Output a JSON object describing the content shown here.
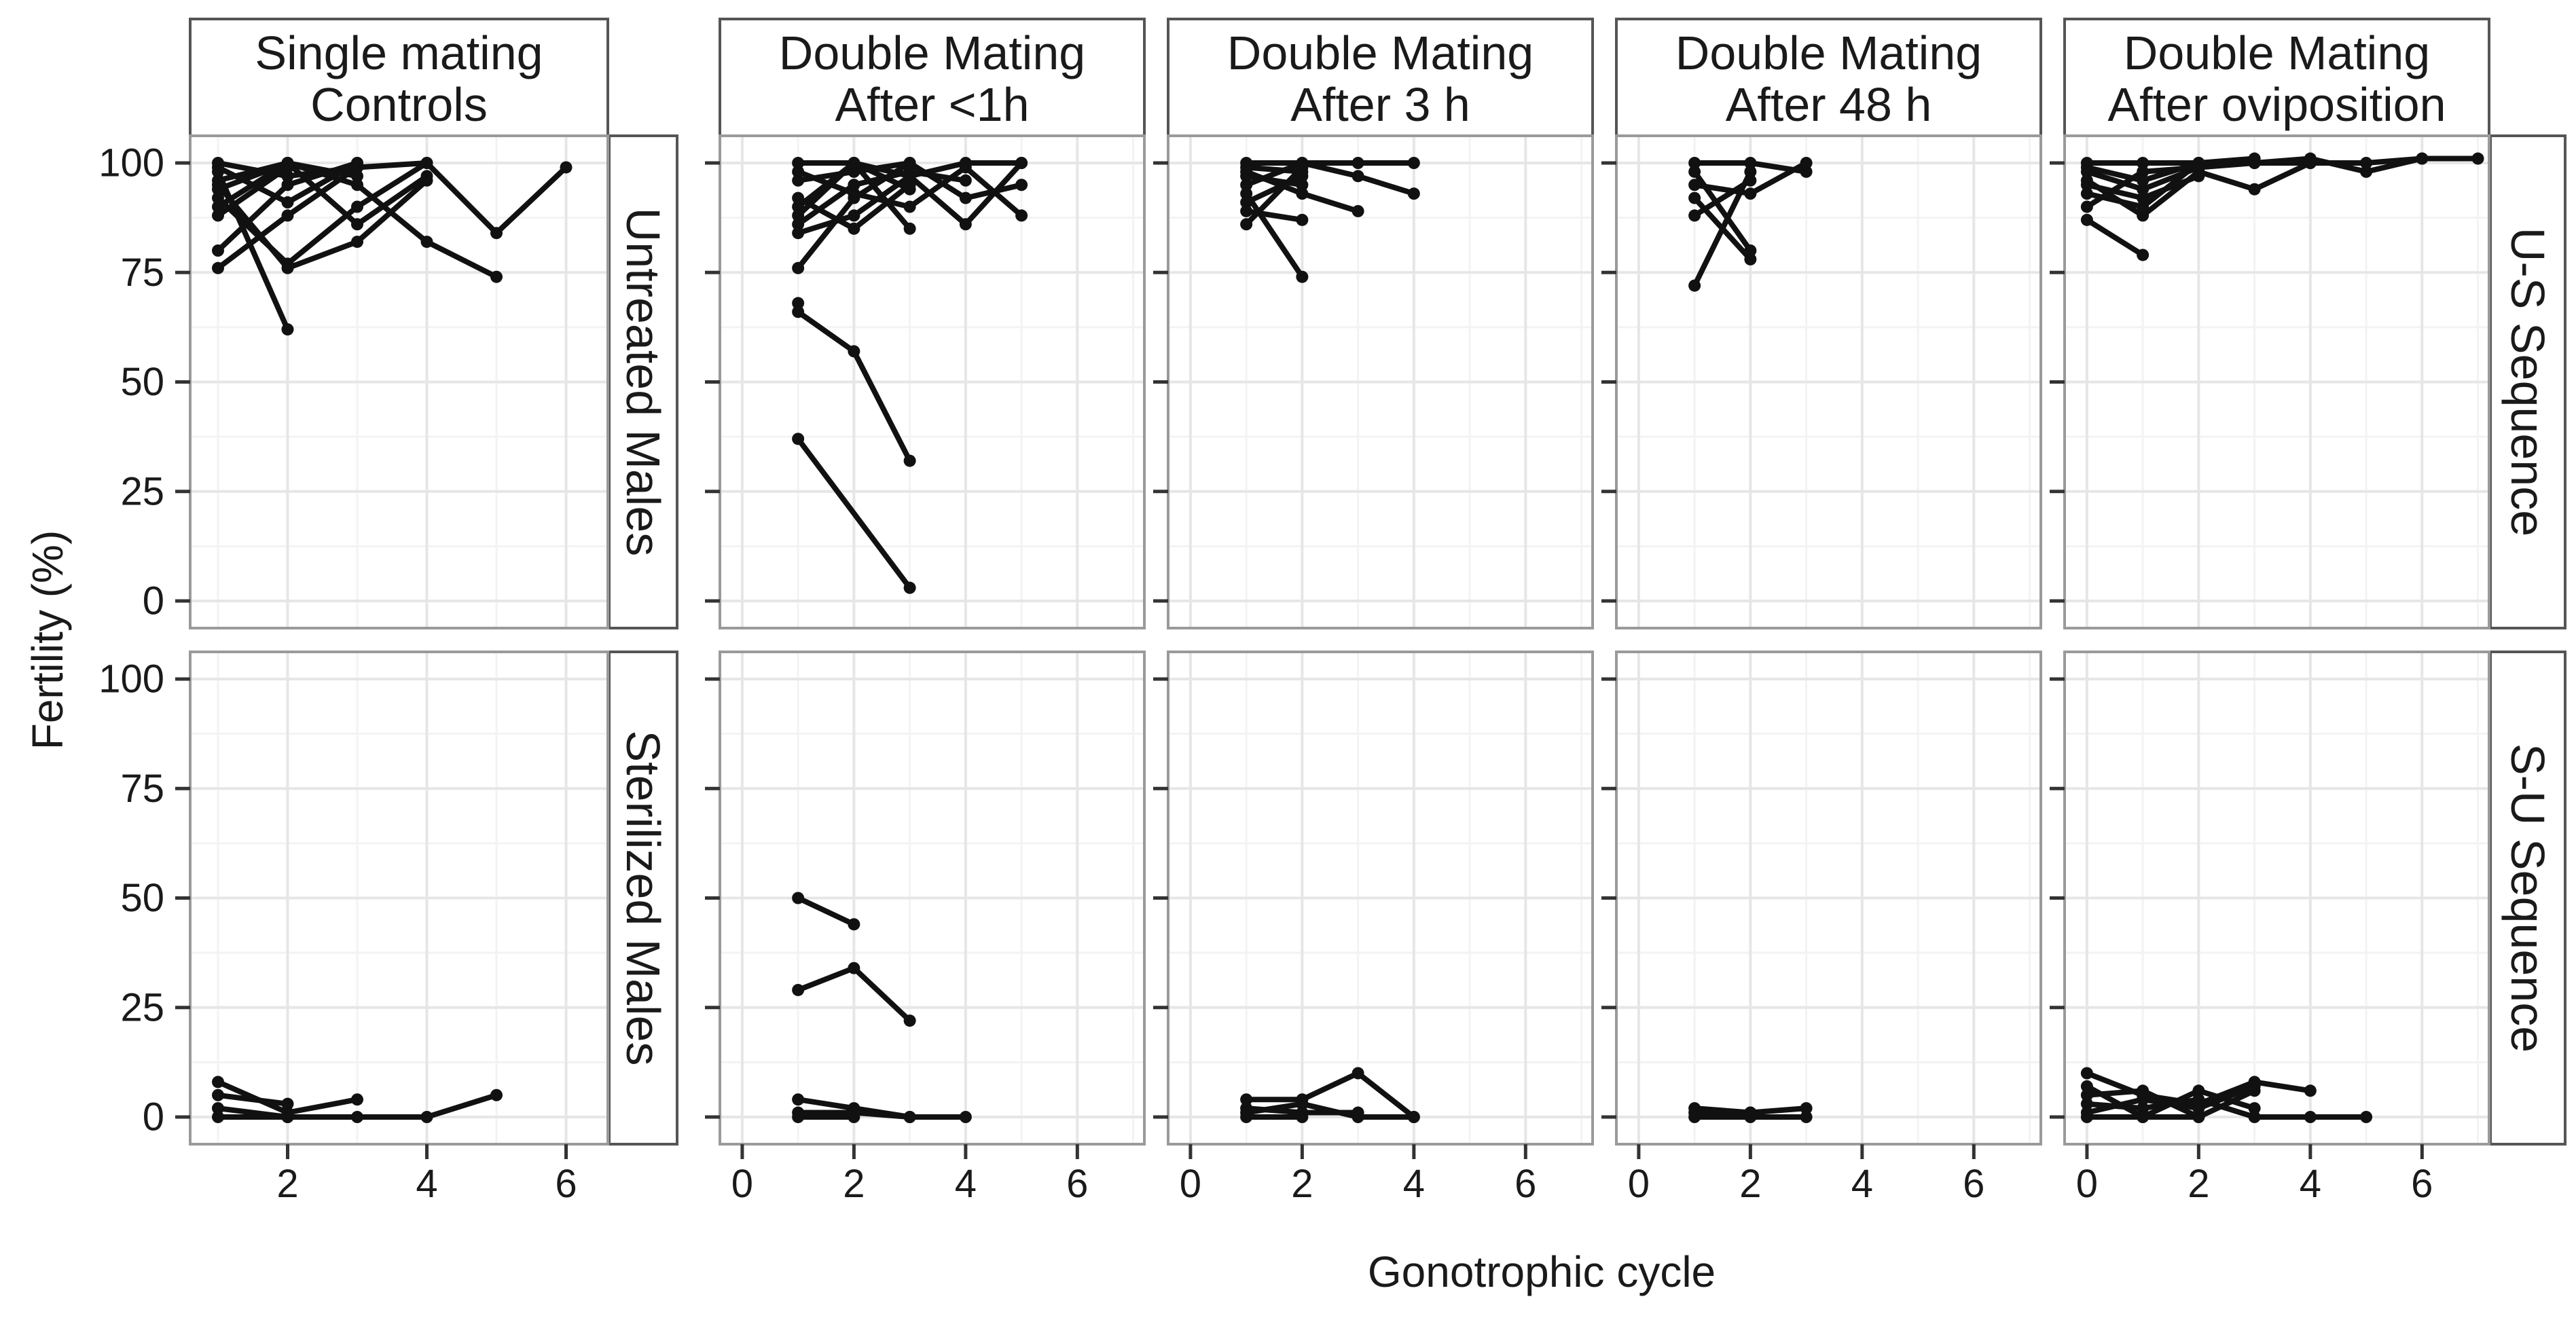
{
  "chart_data": {
    "type": "line",
    "title": "",
    "xlabel": "Gonotrophic cycle",
    "ylabel": "Fertility (%)",
    "ylim": [
      0,
      100
    ],
    "yticks": [
      0,
      25,
      50,
      75,
      100
    ],
    "grid": true,
    "legend": "none",
    "columns": [
      {
        "id": "single",
        "label_line1": "Single mating",
        "label_line2": "Controls",
        "xlim": [
          0.6,
          6.6
        ],
        "xticks": [
          2,
          4,
          6
        ]
      },
      {
        "id": "lt1h",
        "label_line1": "Double Mating",
        "label_line2": "After <1h",
        "xlim": [
          -0.4,
          7.2
        ],
        "xticks": [
          0,
          2,
          4,
          6
        ]
      },
      {
        "id": "3h",
        "label_line1": "Double Mating",
        "label_line2": "After 3 h",
        "xlim": [
          -0.4,
          7.2
        ],
        "xticks": [
          0,
          2,
          4,
          6
        ]
      },
      {
        "id": "48h",
        "label_line1": "Double Mating",
        "label_line2": "After 48 h",
        "xlim": [
          -0.4,
          7.2
        ],
        "xticks": [
          0,
          2,
          4,
          6
        ]
      },
      {
        "id": "ovi",
        "label_line1": "Double Mating",
        "label_line2": "After oviposition",
        "xlim": [
          -0.4,
          7.2
        ],
        "xticks": [
          0,
          2,
          4,
          6
        ]
      }
    ],
    "rows": [
      {
        "id": "untreated",
        "left_label": "Untreated Males",
        "right_label": "U-S Sequence"
      },
      {
        "id": "sterilized",
        "left_label": "Sterilized Males",
        "right_label": "S-U Sequence"
      }
    ],
    "panels": {
      "untreated": {
        "single": [
          [
            [
              1,
              100
            ],
            [
              2,
              97
            ],
            [
              3,
              99
            ],
            [
              4,
              100
            ],
            [
              5,
              84
            ],
            [
              6,
              99
            ]
          ],
          [
            [
              1,
              96
            ],
            [
              2,
              100
            ],
            [
              3,
              97
            ]
          ],
          [
            [
              1,
              92
            ],
            [
              2,
              77
            ],
            [
              3,
              90
            ],
            [
              4,
              100
            ]
          ],
          [
            [
              1,
              76
            ],
            [
              2,
              88
            ],
            [
              3,
              99
            ]
          ],
          [
            [
              1,
              98
            ],
            [
              2,
              62
            ]
          ],
          [
            [
              1,
              94
            ],
            [
              2,
              100
            ],
            [
              3,
              95
            ],
            [
              4,
              82
            ],
            [
              5,
              74
            ]
          ],
          [
            [
              1,
              80
            ],
            [
              2,
              95
            ],
            [
              3,
              100
            ]
          ],
          [
            [
              1,
              90
            ],
            [
              2,
              100
            ],
            [
              3,
              86
            ],
            [
              4,
              97
            ]
          ],
          [
            [
              1,
              99
            ],
            [
              2,
              91
            ],
            [
              3,
              100
            ]
          ],
          [
            [
              1,
              88
            ],
            [
              2,
              99
            ]
          ],
          [
            [
              1,
              95
            ],
            [
              2,
              76
            ],
            [
              3,
              82
            ],
            [
              4,
              96
            ]
          ]
        ],
        "lt1h": [
          [
            [
              1,
              100
            ],
            [
              2,
              100
            ],
            [
              3,
              97
            ],
            [
              4,
              100
            ],
            [
              5,
              100
            ]
          ],
          [
            [
              1,
              96
            ],
            [
              2,
              98
            ],
            [
              3,
              100
            ],
            [
              4,
              92
            ],
            [
              5,
              95
            ]
          ],
          [
            [
              1,
              90
            ],
            [
              2,
              100
            ],
            [
              3,
              85
            ]
          ],
          [
            [
              1,
              86
            ],
            [
              2,
              95
            ],
            [
              3,
              98
            ],
            [
              4,
              96
            ]
          ],
          [
            [
              1,
              84
            ],
            [
              2,
              88
            ],
            [
              3,
              97
            ],
            [
              4,
              86
            ],
            [
              5,
              100
            ]
          ],
          [
            [
              1,
              76
            ],
            [
              2,
              92
            ],
            [
              3,
              100
            ]
          ],
          [
            [
              1,
              92
            ],
            [
              2,
              85
            ],
            [
              3,
              95
            ]
          ],
          [
            [
              1,
              98
            ],
            [
              2,
              93
            ],
            [
              3,
              90
            ],
            [
              4,
              99
            ],
            [
              5,
              88
            ]
          ],
          [
            [
              1,
              88
            ],
            [
              2,
              100
            ],
            [
              3,
              94
            ]
          ],
          [
            [
              1,
              68
            ],
            [
              1,
              66
            ],
            [
              2,
              57
            ],
            [
              3,
              32
            ]
          ],
          [
            [
              1,
              37
            ],
            [
              3,
              3
            ]
          ]
        ],
        "3h": [
          [
            [
              1,
              100
            ],
            [
              2,
              100
            ],
            [
              3,
              100
            ],
            [
              4,
              100
            ]
          ],
          [
            [
              1,
              98
            ],
            [
              2,
              93
            ],
            [
              3,
              89
            ]
          ],
          [
            [
              1,
              95
            ],
            [
              2,
              100
            ],
            [
              3,
              97
            ],
            [
              4,
              93
            ]
          ],
          [
            [
              1,
              93
            ],
            [
              2,
              74
            ]
          ],
          [
            [
              1,
              91
            ],
            [
              2,
              97
            ]
          ],
          [
            [
              1,
              89
            ],
            [
              2,
              87
            ]
          ],
          [
            [
              1,
              86
            ],
            [
              2,
              99
            ]
          ],
          [
            [
              1,
              97
            ],
            [
              2,
              95
            ]
          ],
          [
            [
              1,
              99
            ],
            [
              2,
              98
            ]
          ]
        ],
        "48h": [
          [
            [
              1,
              100
            ],
            [
              2,
              100
            ],
            [
              3,
              98
            ]
          ],
          [
            [
              1,
              98
            ],
            [
              2,
              80
            ]
          ],
          [
            [
              1,
              95
            ],
            [
              2,
              93
            ],
            [
              3,
              100
            ]
          ],
          [
            [
              1,
              88
            ],
            [
              2,
              96
            ]
          ],
          [
            [
              1,
              72
            ],
            [
              2,
              98
            ]
          ],
          [
            [
              1,
              92
            ],
            [
              2,
              78
            ]
          ]
        ],
        "ovi": [
          [
            [
              0,
              100
            ],
            [
              1,
              100
            ],
            [
              2,
              100
            ],
            [
              3,
              100
            ],
            [
              4,
              100
            ],
            [
              5,
              100
            ],
            [
              6,
              101
            ],
            [
              7,
              101
            ]
          ],
          [
            [
              0,
              98
            ],
            [
              1,
              94
            ],
            [
              2,
              99
            ],
            [
              3,
              100
            ],
            [
              4,
              101
            ],
            [
              5,
              98
            ],
            [
              6,
              101
            ]
          ],
          [
            [
              0,
              96
            ],
            [
              1,
              88
            ],
            [
              2,
              98
            ],
            [
              3,
              94
            ],
            [
              4,
              100
            ]
          ],
          [
            [
              0,
              93
            ],
            [
              1,
              90
            ],
            [
              2,
              100
            ]
          ],
          [
            [
              0,
              90
            ],
            [
              1,
              98
            ],
            [
              2,
              99
            ]
          ],
          [
            [
              0,
              87
            ],
            [
              1,
              79
            ]
          ],
          [
            [
              0,
              99
            ],
            [
              1,
              96
            ],
            [
              2,
              100
            ],
            [
              3,
              101
            ]
          ],
          [
            [
              0,
              95
            ],
            [
              1,
              92
            ],
            [
              2,
              97
            ]
          ]
        ]
      },
      "sterilized": {
        "single": [
          [
            [
              1,
              8
            ],
            [
              2,
              1
            ],
            [
              3,
              4
            ]
          ],
          [
            [
              1,
              5
            ],
            [
              2,
              3
            ]
          ],
          [
            [
              1,
              0
            ],
            [
              2,
              0
            ],
            [
              3,
              0
            ],
            [
              4,
              0
            ],
            [
              5,
              5
            ]
          ],
          [
            [
              1,
              2
            ],
            [
              2,
              0
            ]
          ]
        ],
        "lt1h": [
          [
            [
              1,
              50
            ],
            [
              2,
              44
            ]
          ],
          [
            [
              1,
              29
            ],
            [
              2,
              34
            ],
            [
              3,
              22
            ]
          ],
          [
            [
              1,
              4
            ],
            [
              2,
              2
            ],
            [
              3,
              0
            ]
          ],
          [
            [
              1,
              1
            ],
            [
              2,
              1
            ],
            [
              3,
              0
            ],
            [
              4,
              0
            ]
          ],
          [
            [
              1,
              0
            ],
            [
              2,
              0
            ]
          ]
        ],
        "3h": [
          [
            [
              1,
              4
            ],
            [
              2,
              4
            ],
            [
              3,
              10
            ],
            [
              4,
              0
            ]
          ],
          [
            [
              1,
              2
            ],
            [
              2,
              1
            ],
            [
              3,
              1
            ]
          ],
          [
            [
              1,
              1
            ],
            [
              2,
              3
            ],
            [
              3,
              0
            ],
            [
              4,
              0
            ]
          ],
          [
            [
              1,
              0
            ],
            [
              2,
              0
            ]
          ]
        ],
        "48h": [
          [
            [
              1,
              2
            ],
            [
              2,
              1
            ],
            [
              3,
              2
            ]
          ],
          [
            [
              1,
              0
            ],
            [
              2,
              0
            ],
            [
              3,
              0
            ]
          ],
          [
            [
              1,
              1
            ],
            [
              2,
              1
            ]
          ]
        ],
        "ovi": [
          [
            [
              0,
              10
            ],
            [
              1,
              5
            ],
            [
              2,
              3
            ],
            [
              3,
              8
            ],
            [
              4,
              6
            ]
          ],
          [
            [
              0,
              7
            ],
            [
              1,
              0
            ],
            [
              2,
              6
            ],
            [
              3,
              2
            ]
          ],
          [
            [
              0,
              5
            ],
            [
              1,
              6
            ],
            [
              2,
              0
            ],
            [
              3,
              6
            ]
          ],
          [
            [
              0,
              3
            ],
            [
              1,
              2
            ],
            [
              2,
              4
            ],
            [
              3,
              0
            ],
            [
              4,
              0
            ],
            [
              5,
              0
            ]
          ],
          [
            [
              0,
              1
            ],
            [
              1,
              4
            ],
            [
              2,
              2
            ],
            [
              3,
              7
            ]
          ],
          [
            [
              0,
              0
            ],
            [
              1,
              0
            ],
            [
              2,
              0
            ]
          ]
        ]
      }
    }
  }
}
